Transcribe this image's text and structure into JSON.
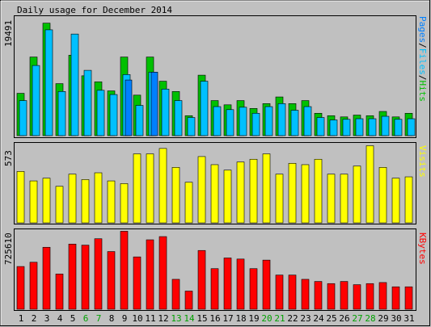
{
  "chart_data": [
    {
      "type": "bar",
      "title": "Daily usage for December 2014",
      "ylabel": "Pages/Files/Hits",
      "ylabel_parts": [
        "Pages",
        "/",
        "Files",
        "/",
        "Hits"
      ],
      "ymax_label": "19491",
      "ylim": [
        0,
        19491
      ],
      "categories": [
        "1",
        "2",
        "3",
        "4",
        "5",
        "6",
        "7",
        "8",
        "9",
        "10",
        "11",
        "12",
        "13",
        "14",
        "15",
        "16",
        "17",
        "18",
        "19",
        "20",
        "21",
        "22",
        "23",
        "24",
        "25",
        "26",
        "27",
        "28",
        "29",
        "30",
        "31"
      ],
      "weekend_days": [
        "6",
        "7",
        "13",
        "14",
        "20",
        "21",
        "27",
        "28"
      ],
      "series": [
        {
          "name": "Hits",
          "color": "#00C000",
          "values": [
            7000,
            13000,
            18600,
            8600,
            13300,
            9900,
            8900,
            7400,
            13000,
            6700,
            13000,
            9000,
            7300,
            3300,
            10000,
            5800,
            5100,
            5800,
            4500,
            5300,
            6400,
            5300,
            5800,
            3700,
            3300,
            3100,
            3400,
            3300,
            4000,
            3100,
            3700
          ]
        },
        {
          "name": "Files",
          "color": "#00C0FF",
          "values": [
            5800,
            11600,
            17500,
            7300,
            16800,
            10800,
            7500,
            6800,
            10100,
            5000,
            10500,
            7700,
            5800,
            3000,
            9000,
            4800,
            4300,
            4700,
            3700,
            4800,
            5300,
            4200,
            4800,
            3000,
            2600,
            2700,
            2800,
            2800,
            3200,
            2700,
            2800
          ]
        },
        {
          "name": "Pages",
          "color": "#0080FF",
          "values": [
            0,
            0,
            0,
            0,
            0,
            0,
            0,
            0,
            9200,
            0,
            10500,
            0,
            0,
            0,
            0,
            0,
            0,
            0,
            0,
            0,
            0,
            0,
            0,
            0,
            0,
            0,
            0,
            0,
            0,
            0,
            0
          ]
        }
      ]
    },
    {
      "type": "bar",
      "ylabel": "Visits",
      "ymax_label": "573",
      "ylim": [
        0,
        573
      ],
      "series": [
        {
          "name": "Visits",
          "color": "#FFFF00",
          "values": [
            380,
            310,
            330,
            270,
            360,
            320,
            370,
            310,
            290,
            510,
            510,
            550,
            410,
            300,
            490,
            430,
            390,
            450,
            470,
            510,
            360,
            440,
            430,
            470,
            360,
            360,
            420,
            570,
            410,
            330,
            340
          ]
        }
      ]
    },
    {
      "type": "bar",
      "ylabel": "KBytes",
      "ymax_label": "725610",
      "ylim": [
        0,
        725610
      ],
      "series": [
        {
          "name": "KBytes",
          "color": "#FF0000",
          "values": [
            400000,
            440000,
            580000,
            330000,
            610000,
            600000,
            660000,
            540000,
            730000,
            490000,
            650000,
            680000,
            280000,
            170000,
            550000,
            380000,
            480000,
            470000,
            380000,
            460000,
            320000,
            320000,
            280000,
            260000,
            240000,
            260000,
            230000,
            240000,
            250000,
            210000,
            210000
          ]
        }
      ]
    }
  ]
}
